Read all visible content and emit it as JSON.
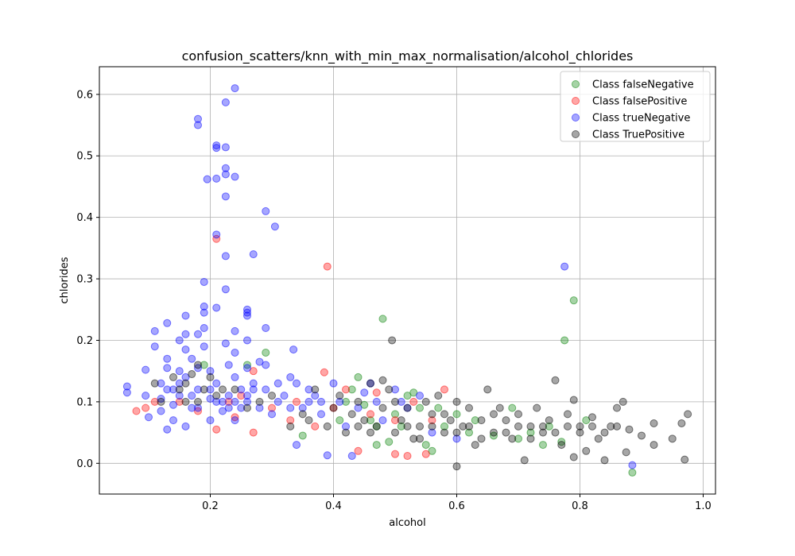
{
  "chart_data": {
    "type": "scatter",
    "title": "confusion_scatters/knn_with_min_max_normalisation/alcohol_chlorides",
    "xlabel": "alcohol",
    "ylabel": "chlorides",
    "xlim": [
      0.02,
      1.02
    ],
    "ylim": [
      -0.05,
      0.645
    ],
    "xticks": [
      0.2,
      0.4,
      0.6,
      0.8,
      1.0
    ],
    "xtick_labels": [
      "0.2",
      "0.4",
      "0.6",
      "0.8",
      "1.0"
    ],
    "yticks": [
      0.0,
      0.1,
      0.2,
      0.3,
      0.4,
      0.5,
      0.6
    ],
    "ytick_labels": [
      "0.0",
      "0.1",
      "0.2",
      "0.3",
      "0.4",
      "0.5",
      "0.6"
    ],
    "grid": true,
    "legend_position": "top-right",
    "series": [
      {
        "name": "Class falseNegative",
        "color": "#008000",
        "points": [
          [
            0.19,
            0.16
          ],
          [
            0.26,
            0.16
          ],
          [
            0.29,
            0.18
          ],
          [
            0.35,
            0.045
          ],
          [
            0.42,
            0.1
          ],
          [
            0.43,
            0.12
          ],
          [
            0.44,
            0.14
          ],
          [
            0.45,
            0.095
          ],
          [
            0.46,
            0.07
          ],
          [
            0.47,
            0.03
          ],
          [
            0.48,
            0.235
          ],
          [
            0.49,
            0.035
          ],
          [
            0.5,
            0.08
          ],
          [
            0.52,
            0.11
          ],
          [
            0.53,
            0.115
          ],
          [
            0.54,
            0.09
          ],
          [
            0.55,
            0.03
          ],
          [
            0.56,
            0.02
          ],
          [
            0.58,
            0.06
          ],
          [
            0.6,
            0.08
          ],
          [
            0.63,
            0.07
          ],
          [
            0.66,
            0.045
          ],
          [
            0.69,
            0.09
          ],
          [
            0.7,
            0.04
          ],
          [
            0.72,
            0.05
          ],
          [
            0.74,
            0.03
          ],
          [
            0.75,
            0.06
          ],
          [
            0.77,
            0.035
          ],
          [
            0.775,
            0.2
          ],
          [
            0.79,
            0.265
          ],
          [
            0.81,
            0.07
          ],
          [
            0.885,
            -0.015
          ],
          [
            0.62,
            0.05
          ],
          [
            0.57,
            0.09
          ],
          [
            0.51,
            0.06
          ],
          [
            0.47,
            0.06
          ],
          [
            0.41,
            0.07
          ]
        ]
      },
      {
        "name": "Class falsePositive",
        "color": "#ff0000",
        "points": [
          [
            0.08,
            0.085
          ],
          [
            0.095,
            0.09
          ],
          [
            0.11,
            0.1
          ],
          [
            0.18,
            0.085
          ],
          [
            0.21,
            0.055
          ],
          [
            0.21,
            0.365
          ],
          [
            0.23,
            0.1
          ],
          [
            0.25,
            0.11
          ],
          [
            0.27,
            0.05
          ],
          [
            0.27,
            0.15
          ],
          [
            0.3,
            0.09
          ],
          [
            0.34,
            0.1
          ],
          [
            0.37,
            0.06
          ],
          [
            0.385,
            0.148
          ],
          [
            0.39,
            0.32
          ],
          [
            0.42,
            0.12
          ],
          [
            0.44,
            0.02
          ],
          [
            0.47,
            0.115
          ],
          [
            0.5,
            0.015
          ],
          [
            0.5,
            0.07
          ],
          [
            0.52,
            0.012
          ],
          [
            0.53,
            0.1
          ],
          [
            0.55,
            0.015
          ],
          [
            0.56,
            0.07
          ],
          [
            0.58,
            0.12
          ],
          [
            0.4,
            0.09
          ],
          [
            0.46,
            0.08
          ],
          [
            0.33,
            0.07
          ],
          [
            0.24,
            0.075
          ],
          [
            0.15,
            0.1
          ]
        ]
      },
      {
        "name": "Class trueNegative",
        "color": "#0000ff",
        "points": [
          [
            0.065,
            0.125
          ],
          [
            0.065,
            0.115
          ],
          [
            0.095,
            0.152
          ],
          [
            0.095,
            0.11
          ],
          [
            0.1,
            0.075
          ],
          [
            0.11,
            0.215
          ],
          [
            0.11,
            0.19
          ],
          [
            0.12,
            0.105
          ],
          [
            0.12,
            0.085
          ],
          [
            0.13,
            0.228
          ],
          [
            0.13,
            0.17
          ],
          [
            0.13,
            0.155
          ],
          [
            0.13,
            0.12
          ],
          [
            0.13,
            0.055
          ],
          [
            0.14,
            0.095
          ],
          [
            0.14,
            0.07
          ],
          [
            0.15,
            0.2
          ],
          [
            0.15,
            0.15
          ],
          [
            0.15,
            0.13
          ],
          [
            0.16,
            0.24
          ],
          [
            0.16,
            0.21
          ],
          [
            0.16,
            0.185
          ],
          [
            0.16,
            0.14
          ],
          [
            0.16,
            0.06
          ],
          [
            0.17,
            0.17
          ],
          [
            0.17,
            0.11
          ],
          [
            0.18,
            0.56
          ],
          [
            0.18,
            0.55
          ],
          [
            0.18,
            0.21
          ],
          [
            0.18,
            0.155
          ],
          [
            0.18,
            0.09
          ],
          [
            0.19,
            0.295
          ],
          [
            0.19,
            0.255
          ],
          [
            0.19,
            0.245
          ],
          [
            0.19,
            0.22
          ],
          [
            0.19,
            0.19
          ],
          [
            0.195,
            0.462
          ],
          [
            0.2,
            0.15
          ],
          [
            0.2,
            0.12
          ],
          [
            0.2,
            0.07
          ],
          [
            0.21,
            0.517
          ],
          [
            0.21,
            0.513
          ],
          [
            0.21,
            0.463
          ],
          [
            0.21,
            0.372
          ],
          [
            0.21,
            0.253
          ],
          [
            0.21,
            0.13
          ],
          [
            0.22,
            0.1
          ],
          [
            0.225,
            0.587
          ],
          [
            0.225,
            0.514
          ],
          [
            0.225,
            0.48
          ],
          [
            0.225,
            0.47
          ],
          [
            0.225,
            0.434
          ],
          [
            0.225,
            0.337
          ],
          [
            0.225,
            0.283
          ],
          [
            0.225,
            0.195
          ],
          [
            0.23,
            0.16
          ],
          [
            0.23,
            0.11
          ],
          [
            0.24,
            0.61
          ],
          [
            0.24,
            0.466
          ],
          [
            0.24,
            0.215
          ],
          [
            0.24,
            0.18
          ],
          [
            0.24,
            0.14
          ],
          [
            0.24,
            0.07
          ],
          [
            0.25,
            0.12
          ],
          [
            0.25,
            0.09
          ],
          [
            0.26,
            0.25
          ],
          [
            0.26,
            0.245
          ],
          [
            0.26,
            0.24
          ],
          [
            0.26,
            0.2
          ],
          [
            0.26,
            0.155
          ],
          [
            0.26,
            0.1
          ],
          [
            0.27,
            0.34
          ],
          [
            0.27,
            0.13
          ],
          [
            0.28,
            0.165
          ],
          [
            0.29,
            0.41
          ],
          [
            0.29,
            0.22
          ],
          [
            0.29,
            0.16
          ],
          [
            0.29,
            0.12
          ],
          [
            0.3,
            0.08
          ],
          [
            0.305,
            0.385
          ],
          [
            0.31,
            0.13
          ],
          [
            0.32,
            0.11
          ],
          [
            0.33,
            0.14
          ],
          [
            0.335,
            0.185
          ],
          [
            0.34,
            0.13
          ],
          [
            0.34,
            0.03
          ],
          [
            0.35,
            0.09
          ],
          [
            0.36,
            0.12
          ],
          [
            0.37,
            0.11
          ],
          [
            0.38,
            0.08
          ],
          [
            0.39,
            0.013
          ],
          [
            0.4,
            0.13
          ],
          [
            0.41,
            0.1
          ],
          [
            0.42,
            0.06
          ],
          [
            0.43,
            0.012
          ],
          [
            0.44,
            0.09
          ],
          [
            0.45,
            0.115
          ],
          [
            0.46,
            0.13
          ],
          [
            0.47,
            0.1
          ],
          [
            0.48,
            0.07
          ],
          [
            0.5,
            0.12
          ],
          [
            0.51,
            0.1
          ],
          [
            0.52,
            0.09
          ],
          [
            0.54,
            0.11
          ],
          [
            0.56,
            0.05
          ],
          [
            0.6,
            0.04
          ],
          [
            0.775,
            0.32
          ],
          [
            0.885,
            -0.003
          ],
          [
            0.14,
            0.12
          ],
          [
            0.17,
            0.09
          ],
          [
            0.2,
            0.105
          ],
          [
            0.22,
            0.085
          ],
          [
            0.23,
            0.09
          ],
          [
            0.26,
            0.11
          ],
          [
            0.28,
            0.09
          ],
          [
            0.31,
            0.1
          ],
          [
            0.33,
            0.09
          ],
          [
            0.36,
            0.1
          ],
          [
            0.38,
            0.1
          ],
          [
            0.12,
            0.13
          ],
          [
            0.15,
            0.11
          ],
          [
            0.18,
            0.12
          ],
          [
            0.21,
            0.1
          ],
          [
            0.24,
            0.1
          ],
          [
            0.27,
            0.12
          ]
        ]
      },
      {
        "name": "Class TruePositive",
        "color": "#000000",
        "points": [
          [
            0.11,
            0.13
          ],
          [
            0.12,
            0.1
          ],
          [
            0.14,
            0.14
          ],
          [
            0.15,
            0.12
          ],
          [
            0.16,
            0.13
          ],
          [
            0.17,
            0.145
          ],
          [
            0.18,
            0.16
          ],
          [
            0.18,
            0.1
          ],
          [
            0.2,
            0.14
          ],
          [
            0.22,
            0.12
          ],
          [
            0.26,
            0.09
          ],
          [
            0.3,
            0.11
          ],
          [
            0.33,
            0.06
          ],
          [
            0.35,
            0.08
          ],
          [
            0.37,
            0.12
          ],
          [
            0.39,
            0.06
          ],
          [
            0.4,
            0.09
          ],
          [
            0.41,
            0.11
          ],
          [
            0.42,
            0.05
          ],
          [
            0.43,
            0.08
          ],
          [
            0.44,
            0.1
          ],
          [
            0.45,
            0.07
          ],
          [
            0.46,
            0.13
          ],
          [
            0.47,
            0.06
          ],
          [
            0.48,
            0.09
          ],
          [
            0.48,
            0.135
          ],
          [
            0.49,
            0.12
          ],
          [
            0.495,
            0.2
          ],
          [
            0.5,
            0.05
          ],
          [
            0.5,
            0.1
          ],
          [
            0.51,
            0.07
          ],
          [
            0.52,
            0.09
          ],
          [
            0.53,
            0.04
          ],
          [
            0.54,
            0.06
          ],
          [
            0.55,
            0.1
          ],
          [
            0.56,
            0.08
          ],
          [
            0.57,
            0.11
          ],
          [
            0.58,
            0.05
          ],
          [
            0.59,
            0.07
          ],
          [
            0.6,
            -0.005
          ],
          [
            0.6,
            0.1
          ],
          [
            0.61,
            0.06
          ],
          [
            0.62,
            0.09
          ],
          [
            0.63,
            0.03
          ],
          [
            0.64,
            0.07
          ],
          [
            0.65,
            0.12
          ],
          [
            0.66,
            0.05
          ],
          [
            0.67,
            0.09
          ],
          [
            0.68,
            0.07
          ],
          [
            0.69,
            0.04
          ],
          [
            0.7,
            0.08
          ],
          [
            0.71,
            0.005
          ],
          [
            0.72,
            0.06
          ],
          [
            0.73,
            0.09
          ],
          [
            0.74,
            0.05
          ],
          [
            0.75,
            0.07
          ],
          [
            0.76,
            0.135
          ],
          [
            0.77,
            0.03
          ],
          [
            0.78,
            0.08
          ],
          [
            0.79,
            0.01
          ],
          [
            0.79,
            0.103
          ],
          [
            0.8,
            0.06
          ],
          [
            0.81,
            0.02
          ],
          [
            0.82,
            0.075
          ],
          [
            0.83,
            0.04
          ],
          [
            0.84,
            0.005
          ],
          [
            0.85,
            0.06
          ],
          [
            0.86,
            0.09
          ],
          [
            0.87,
            0.1
          ],
          [
            0.875,
            0.018
          ],
          [
            0.88,
            0.055
          ],
          [
            0.9,
            0.045
          ],
          [
            0.92,
            0.065
          ],
          [
            0.92,
            0.03
          ],
          [
            0.95,
            0.04
          ],
          [
            0.965,
            0.065
          ],
          [
            0.97,
            0.006
          ],
          [
            0.975,
            0.08
          ],
          [
            0.52,
            0.06
          ],
          [
            0.54,
            0.04
          ],
          [
            0.56,
            0.06
          ],
          [
            0.58,
            0.08
          ],
          [
            0.6,
            0.05
          ],
          [
            0.62,
            0.06
          ],
          [
            0.64,
            0.04
          ],
          [
            0.66,
            0.08
          ],
          [
            0.68,
            0.05
          ],
          [
            0.7,
            0.06
          ],
          [
            0.72,
            0.04
          ],
          [
            0.74,
            0.06
          ],
          [
            0.76,
            0.05
          ],
          [
            0.78,
            0.06
          ],
          [
            0.8,
            0.05
          ],
          [
            0.82,
            0.06
          ],
          [
            0.84,
            0.05
          ],
          [
            0.86,
            0.06
          ],
          [
            0.44,
            0.06
          ],
          [
            0.46,
            0.05
          ],
          [
            0.36,
            0.07
          ],
          [
            0.28,
            0.1
          ],
          [
            0.24,
            0.12
          ],
          [
            0.21,
            0.11
          ],
          [
            0.19,
            0.12
          ],
          [
            0.16,
            0.1
          ]
        ]
      }
    ]
  }
}
